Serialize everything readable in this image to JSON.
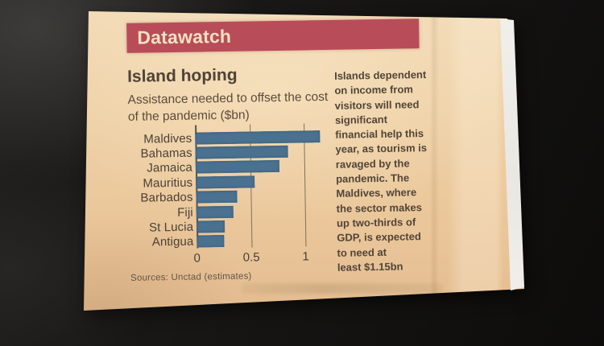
{
  "clipping": {
    "banner": {
      "label": "Datawatch",
      "bg_color": "#b84d59",
      "text_color": "#f4e1c2"
    },
    "paper_color": "#ebc89c",
    "annotation": "Islands dependent\non income from\nvisitors will need\nsignificant\nfinancial help this\nyear, as tourism is\nravaged by the\npandemic. The\nMaldives, where\nthe sector makes\nup two-thirds of\nGDP, is expected\nto need at\nleast $1.15bn"
  },
  "chart_data": {
    "type": "bar",
    "orientation": "horizontal",
    "title": "Island hoping",
    "subtitle": "Assistance needed to offset the cost\nof the pandemic ($bn)",
    "categories": [
      "Maldives",
      "Bahamas",
      "Jamaica",
      "Mauritius",
      "Barbados",
      "Fiji",
      "St Lucia",
      "Antigua"
    ],
    "values": [
      1.15,
      0.85,
      0.77,
      0.54,
      0.38,
      0.34,
      0.26,
      0.25
    ],
    "xlabel": "",
    "ylabel": "",
    "xlim": [
      0,
      1.2
    ],
    "ticks": [
      {
        "label": "0",
        "value": 0
      },
      {
        "label": "0.5",
        "value": 0.5
      },
      {
        "label": "1",
        "value": 1
      }
    ],
    "grid": "vertical",
    "legend": "none",
    "bar_color": "#4a7290",
    "source": "Sources: Unctad (estimates)"
  }
}
